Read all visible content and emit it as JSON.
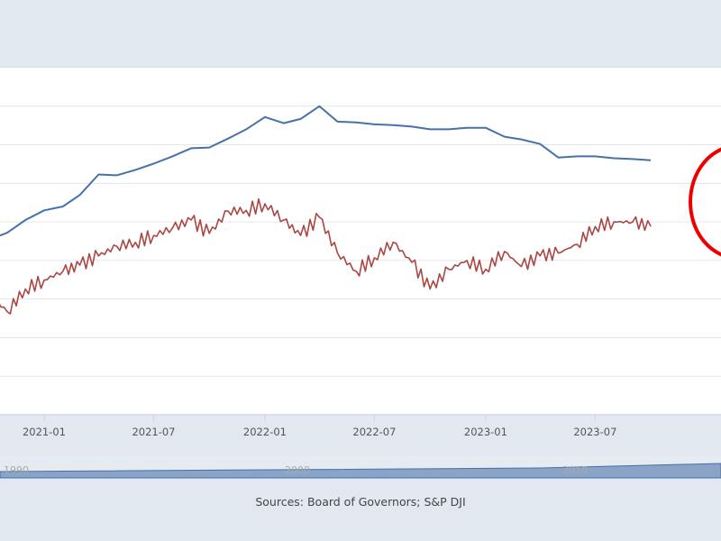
{
  "chart_data": {
    "type": "line",
    "title": "",
    "xlabel": "",
    "ylabel": "",
    "x_ticks": [
      "2021-01",
      "2021-07",
      "2022-01",
      "2022-07",
      "2023-01",
      "2023-07"
    ],
    "x_range": [
      "2020-10-20",
      "2024-01-25"
    ],
    "ylim": [
      0,
      9
    ],
    "y_gridlines": [
      1,
      2,
      3,
      4,
      5,
      6,
      7,
      8
    ],
    "grid": true,
    "dates": [
      "2020-10",
      "2020-11",
      "2020-12",
      "2021-01",
      "2021-02",
      "2021-03",
      "2021-04",
      "2021-05",
      "2021-06",
      "2021-07",
      "2021-08",
      "2021-09",
      "2021-10",
      "2021-11",
      "2021-12",
      "2022-01",
      "2022-02",
      "2022-03",
      "2022-04",
      "2022-05",
      "2022-06",
      "2022-07",
      "2022-08",
      "2022-09",
      "2022-10",
      "2022-11",
      "2022-12",
      "2023-01",
      "2023-02",
      "2023-03",
      "2023-04",
      "2023-05",
      "2023-06",
      "2023-07",
      "2023-08",
      "2023-09",
      "2023-10"
    ],
    "series": [
      {
        "color": "#4572a7",
        "values": [
          4.53,
          4.72,
          5.05,
          5.3,
          5.4,
          5.7,
          6.23,
          6.21,
          6.35,
          6.51,
          6.7,
          6.91,
          6.93,
          7.16,
          7.4,
          7.72,
          7.56,
          7.67,
          8.0,
          7.6,
          7.58,
          7.53,
          7.51,
          7.47,
          7.4,
          7.4,
          7.44,
          7.44,
          7.21,
          7.14,
          7.02,
          6.67,
          6.7,
          6.7,
          6.65,
          6.63,
          6.6
        ]
      },
      {
        "color": "#aa4643",
        "values": [
          3.14,
          2.67,
          3.26,
          3.49,
          3.72,
          3.88,
          4.12,
          4.37,
          4.47,
          4.65,
          4.84,
          5.05,
          4.7,
          5.28,
          5.3,
          5.47,
          5.05,
          4.65,
          5.12,
          4.19,
          3.72,
          4.07,
          4.47,
          3.95,
          3.26,
          3.77,
          4.0,
          3.77,
          4.23,
          3.84,
          4.12,
          4.19,
          4.42,
          4.88,
          5.0,
          5.0,
          4.88
        ]
      }
    ],
    "navigator": {
      "labels": [
        "1990",
        "2000",
        "2010"
      ]
    },
    "annotation": {
      "shape": "circle",
      "color": "#ee0000"
    }
  },
  "footer": {
    "sources": "Sources: Board of Governors; S&P DJI"
  }
}
